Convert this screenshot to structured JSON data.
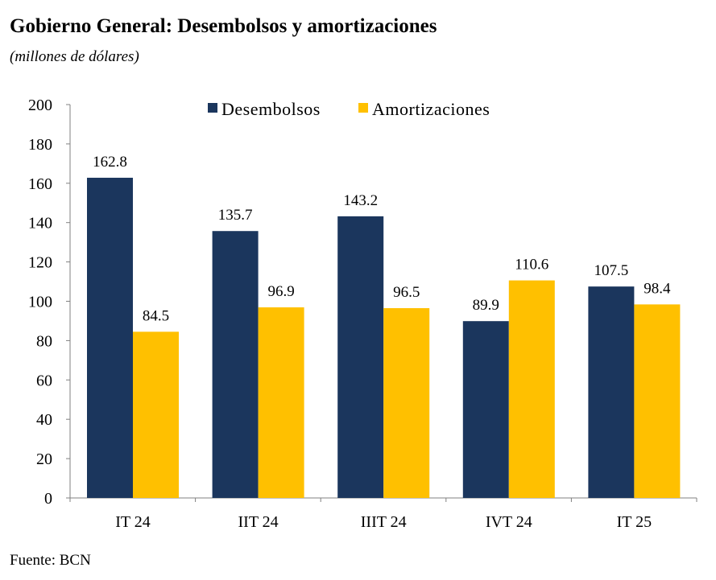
{
  "title": "Gobierno General: Desembolsos y amortizaciones",
  "subtitle": "(millones de dólares)",
  "source": "Fuente: BCN",
  "colors": {
    "desembolsos": "#1b365d",
    "amortizaciones": "#ffc000",
    "axis": "#808080",
    "text": "#000000"
  },
  "chart_data": {
    "type": "bar",
    "title": "Gobierno General: Desembolsos y amortizaciones",
    "subtitle": "(millones de dólares)",
    "categories": [
      "IT 24",
      "IIT 24",
      "IIIT 24",
      "IVT 24",
      "IT 25"
    ],
    "series": [
      {
        "name": "Desembolsos",
        "values": [
          162.8,
          135.7,
          143.2,
          89.9,
          107.5
        ],
        "labels": [
          "162.8",
          "135.7",
          "143.2",
          "89.9",
          "107.5"
        ]
      },
      {
        "name": "Amortizaciones",
        "values": [
          84.5,
          96.9,
          96.5,
          110.6,
          98.4
        ],
        "labels": [
          "84.5",
          "96.9",
          "96.5",
          "110.6",
          "98.4"
        ]
      }
    ],
    "ylim": [
      0,
      200
    ],
    "yticks": [
      "0",
      "20",
      "40",
      "60",
      "80",
      "100",
      "120",
      "140",
      "160",
      "180",
      "200"
    ],
    "grid": false,
    "legend": "top"
  }
}
